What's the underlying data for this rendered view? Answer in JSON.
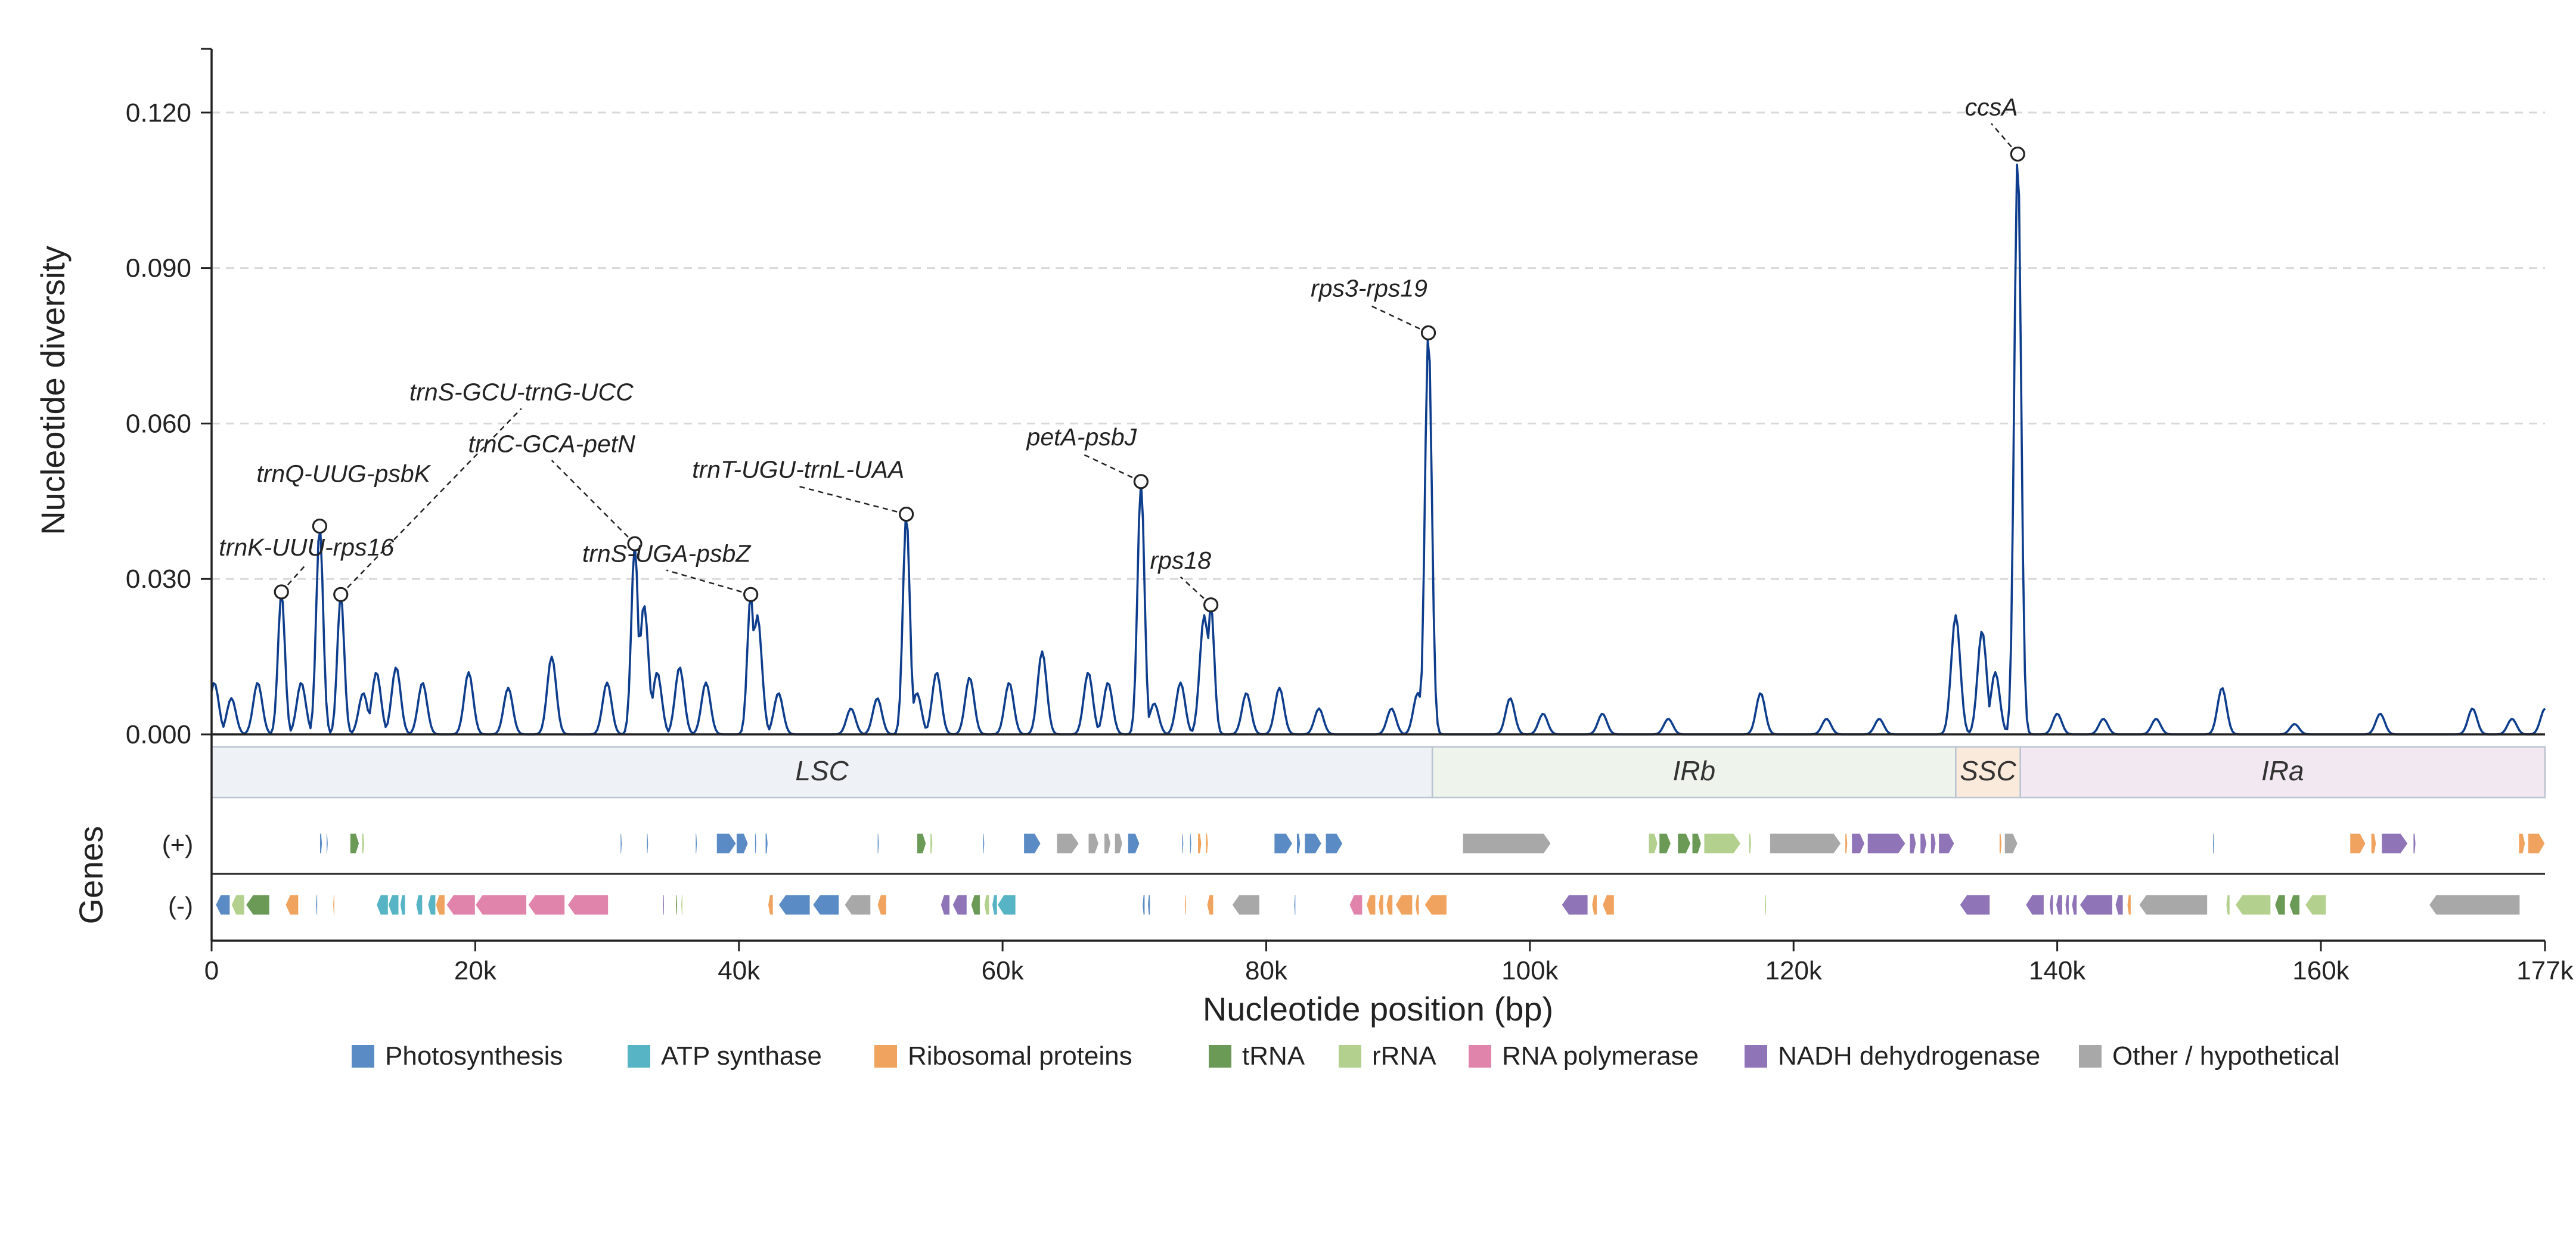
{
  "chart_data": {
    "type": "line",
    "ylabel": "Nucleotide diversity",
    "xlabel": "Nucleotide position (bp)",
    "ylim": [
      0,
      0.1323
    ],
    "xlim": [
      0,
      177000
    ],
    "yticks": [
      0.0,
      0.03,
      0.06,
      0.09,
      0.12
    ],
    "ytick_labels": [
      "0.000",
      "0.030",
      "0.060",
      "0.090",
      "0.120"
    ],
    "xticks": [
      0,
      20000,
      40000,
      60000,
      80000,
      100000,
      120000,
      140000,
      160000,
      177000
    ],
    "xtick_labels": [
      "0",
      "20k",
      "40k",
      "60k",
      "80k",
      "100k",
      "120k",
      "140k",
      "160k",
      "177k"
    ],
    "grid": "horizontal-dashed",
    "line_color": "#0d3d8c",
    "peaks": [
      {
        "x": 5300,
        "y": 0.0275,
        "label": "trnK-UUU-rps16",
        "label_x": 7200,
        "label_y": 0.0345
      },
      {
        "x": 8200,
        "y": 0.0402,
        "label": "trnQ-UUG-psbK",
        "label_x": 10000,
        "label_y": 0.0487
      },
      {
        "x": 9800,
        "y": 0.027,
        "label": "trnS-GCU-trnG-UCC",
        "label_x": 23500,
        "label_y": 0.0645
      },
      {
        "x": 32100,
        "y": 0.0368,
        "label": "trnC-GCA-petN",
        "label_x": 25800,
        "label_y": 0.0545
      },
      {
        "x": 40900,
        "y": 0.027,
        "label": "trnS-UGA-psbZ",
        "label_x": 34500,
        "label_y": 0.0333
      },
      {
        "x": 52700,
        "y": 0.0425,
        "label": "trnT-UGU-trnL-UAA",
        "label_x": 44500,
        "label_y": 0.0495
      },
      {
        "x": 70500,
        "y": 0.0488,
        "label": "petA-psbJ",
        "label_x": 66000,
        "label_y": 0.0558
      },
      {
        "x": 75800,
        "y": 0.025,
        "label": "rps18",
        "label_x": 73500,
        "label_y": 0.032
      },
      {
        "x": 92300,
        "y": 0.0775,
        "label": "rps3-rps19",
        "label_x": 87800,
        "label_y": 0.0845
      },
      {
        "x": 137000,
        "y": 0.112,
        "label": "ccsA",
        "label_x": 135000,
        "label_y": 0.1195
      }
    ],
    "minor_bumps": [
      [
        200,
        0.01
      ],
      [
        1500,
        0.007
      ],
      [
        3500,
        0.01
      ],
      [
        6800,
        0.01
      ],
      [
        11500,
        0.008
      ],
      [
        12500,
        0.012
      ],
      [
        14000,
        0.013
      ],
      [
        16000,
        0.01
      ],
      [
        19500,
        0.012
      ],
      [
        22500,
        0.009
      ],
      [
        25800,
        0.015
      ],
      [
        30000,
        0.01
      ],
      [
        32800,
        0.025
      ],
      [
        33800,
        0.012
      ],
      [
        35500,
        0.013
      ],
      [
        37500,
        0.01
      ],
      [
        41400,
        0.023
      ],
      [
        43000,
        0.008
      ],
      [
        48500,
        0.005
      ],
      [
        50500,
        0.007
      ],
      [
        53500,
        0.008
      ],
      [
        55000,
        0.012
      ],
      [
        57500,
        0.011
      ],
      [
        60500,
        0.01
      ],
      [
        63000,
        0.016
      ],
      [
        66500,
        0.012
      ],
      [
        68000,
        0.01
      ],
      [
        71500,
        0.006
      ],
      [
        73500,
        0.01
      ],
      [
        75300,
        0.023
      ],
      [
        78500,
        0.008
      ],
      [
        81000,
        0.009
      ],
      [
        84000,
        0.005
      ],
      [
        89500,
        0.005
      ],
      [
        91500,
        0.008
      ],
      [
        98500,
        0.007
      ],
      [
        101000,
        0.004
      ],
      [
        105500,
        0.004
      ],
      [
        110500,
        0.003
      ],
      [
        117500,
        0.008
      ],
      [
        122500,
        0.003
      ],
      [
        126500,
        0.003
      ],
      [
        132300,
        0.023
      ],
      [
        134300,
        0.02
      ],
      [
        135300,
        0.012
      ],
      [
        140000,
        0.004
      ],
      [
        143500,
        0.003
      ],
      [
        147500,
        0.003
      ],
      [
        152500,
        0.009
      ],
      [
        158000,
        0.002
      ],
      [
        164500,
        0.004
      ],
      [
        171500,
        0.005
      ],
      [
        174500,
        0.003
      ],
      [
        177000,
        0.005
      ]
    ],
    "regions": [
      {
        "name": "LSC",
        "start": 0,
        "end": 92600,
        "color": "#eef2f6"
      },
      {
        "name": "IRb",
        "start": 92600,
        "end": 132300,
        "color": "#eef3ec"
      },
      {
        "name": "SSC",
        "start": 132300,
        "end": 137200,
        "color": "#faeadc"
      },
      {
        "name": "IRa",
        "start": 137200,
        "end": 177000,
        "color": "#f2e8f2"
      }
    ],
    "genes_axis_label": "Genes",
    "strands": [
      "(+)",
      "(-)"
    ],
    "legend": [
      {
        "name": "Photosynthesis",
        "color": "#5b8bc4"
      },
      {
        "name": "ATP synthase",
        "color": "#56b4c4"
      },
      {
        "name": "Ribosomal proteins",
        "color": "#f0a35e"
      },
      {
        "name": "tRNA",
        "color": "#6b9a57"
      },
      {
        "name": "rRNA",
        "color": "#b3d08f"
      },
      {
        "name": "RNA polymerase",
        "color": "#e184ac"
      },
      {
        "name": "NADH dehydrogenase",
        "color": "#8f74b7"
      },
      {
        "name": "Other / hypothetical",
        "color": "#a8a8a8"
      }
    ],
    "genes_plus": [
      [
        8200,
        8400,
        0
      ],
      [
        8700,
        8800,
        0
      ],
      [
        10500,
        11200,
        3
      ],
      [
        11400,
        11600,
        4
      ],
      [
        31000,
        31100,
        0
      ],
      [
        33000,
        33100,
        0
      ],
      [
        36700,
        36800,
        0
      ],
      [
        38300,
        39800,
        0
      ],
      [
        39800,
        40700,
        0
      ],
      [
        41200,
        41300,
        0
      ],
      [
        42000,
        42200,
        0
      ],
      [
        50500,
        50600,
        0
      ],
      [
        53500,
        54200,
        3
      ],
      [
        54500,
        54700,
        4
      ],
      [
        58500,
        58600,
        0
      ],
      [
        61600,
        62900,
        0
      ],
      [
        64100,
        65800,
        7
      ],
      [
        66500,
        67300,
        7
      ],
      [
        67700,
        68200,
        7
      ],
      [
        68500,
        69100,
        7
      ],
      [
        69500,
        70400,
        0
      ],
      [
        73600,
        73700,
        0
      ],
      [
        74200,
        74300,
        0
      ],
      [
        74800,
        75100,
        2
      ],
      [
        75400,
        75600,
        2
      ],
      [
        80600,
        82000,
        0
      ],
      [
        82300,
        82600,
        0
      ],
      [
        82900,
        84200,
        0
      ],
      [
        84500,
        85800,
        0
      ],
      [
        94900,
        101600,
        7
      ],
      [
        109000,
        109700,
        4
      ],
      [
        109800,
        110700,
        3
      ],
      [
        111200,
        112200,
        3
      ],
      [
        112300,
        113000,
        3
      ],
      [
        113200,
        116000,
        4
      ],
      [
        116600,
        116800,
        4
      ],
      [
        118200,
        123600,
        7
      ],
      [
        123900,
        124100,
        2
      ],
      [
        124400,
        125400,
        6
      ],
      [
        125600,
        128500,
        6
      ],
      [
        128800,
        129300,
        6
      ],
      [
        129600,
        130100,
        6
      ],
      [
        130400,
        130800,
        6
      ],
      [
        131000,
        132200,
        6
      ],
      [
        135600,
        135800,
        2
      ],
      [
        136000,
        137000,
        7
      ],
      [
        151800,
        151900,
        0
      ],
      [
        162200,
        163400,
        2
      ],
      [
        163800,
        164200,
        2
      ],
      [
        164600,
        166600,
        6
      ],
      [
        167000,
        167200,
        6
      ],
      [
        175000,
        175500,
        2
      ],
      [
        175700,
        177000,
        2
      ]
    ],
    "genes_minus": [
      [
        300,
        1400,
        0
      ],
      [
        1500,
        2500,
        4
      ],
      [
        2600,
        4400,
        3
      ],
      [
        5600,
        6600,
        2
      ],
      [
        7900,
        8000,
        0
      ],
      [
        9200,
        9300,
        2
      ],
      [
        12500,
        13400,
        1
      ],
      [
        13400,
        14200,
        1
      ],
      [
        14300,
        14700,
        1
      ],
      [
        15500,
        16000,
        1
      ],
      [
        16400,
        17000,
        1
      ],
      [
        17000,
        17700,
        2
      ],
      [
        17800,
        20000,
        5
      ],
      [
        20000,
        23900,
        5
      ],
      [
        24000,
        26800,
        5
      ],
      [
        27000,
        30100,
        5
      ],
      [
        34200,
        34300,
        6
      ],
      [
        35200,
        35300,
        3
      ],
      [
        35600,
        35700,
        4
      ],
      [
        42200,
        42600,
        2
      ],
      [
        43000,
        45400,
        0
      ],
      [
        45600,
        47600,
        0
      ],
      [
        48000,
        50000,
        7
      ],
      [
        50500,
        51200,
        2
      ],
      [
        55300,
        56000,
        6
      ],
      [
        56200,
        57300,
        6
      ],
      [
        57600,
        58300,
        3
      ],
      [
        58600,
        59000,
        4
      ],
      [
        59200,
        59600,
        1
      ],
      [
        59600,
        61000,
        1
      ],
      [
        70600,
        70800,
        0
      ],
      [
        71000,
        71200,
        0
      ],
      [
        73800,
        73900,
        2
      ],
      [
        75500,
        76000,
        2
      ],
      [
        77400,
        79500,
        7
      ],
      [
        82100,
        82200,
        0
      ],
      [
        86300,
        87300,
        5
      ],
      [
        87600,
        88300,
        2
      ],
      [
        88500,
        88900,
        2
      ],
      [
        89100,
        89600,
        2
      ],
      [
        89800,
        91100,
        2
      ],
      [
        91300,
        91600,
        2
      ],
      [
        92000,
        93700,
        2
      ],
      [
        102400,
        104400,
        6
      ],
      [
        104700,
        105100,
        2
      ],
      [
        105500,
        106400,
        2
      ],
      [
        117800,
        117900,
        4
      ],
      [
        132600,
        134900,
        6
      ],
      [
        137600,
        139000,
        6
      ],
      [
        139400,
        139700,
        6
      ],
      [
        139900,
        140400,
        6
      ],
      [
        140600,
        140900,
        6
      ],
      [
        141100,
        141500,
        6
      ],
      [
        141700,
        144200,
        6
      ],
      [
        144400,
        145000,
        6
      ],
      [
        145300,
        145600,
        2
      ],
      [
        146200,
        151400,
        7
      ],
      [
        152800,
        153100,
        4
      ],
      [
        153500,
        156200,
        4
      ],
      [
        156500,
        157300,
        3
      ],
      [
        157600,
        158400,
        3
      ],
      [
        158800,
        160400,
        4
      ],
      [
        168200,
        175100,
        7
      ]
    ]
  }
}
